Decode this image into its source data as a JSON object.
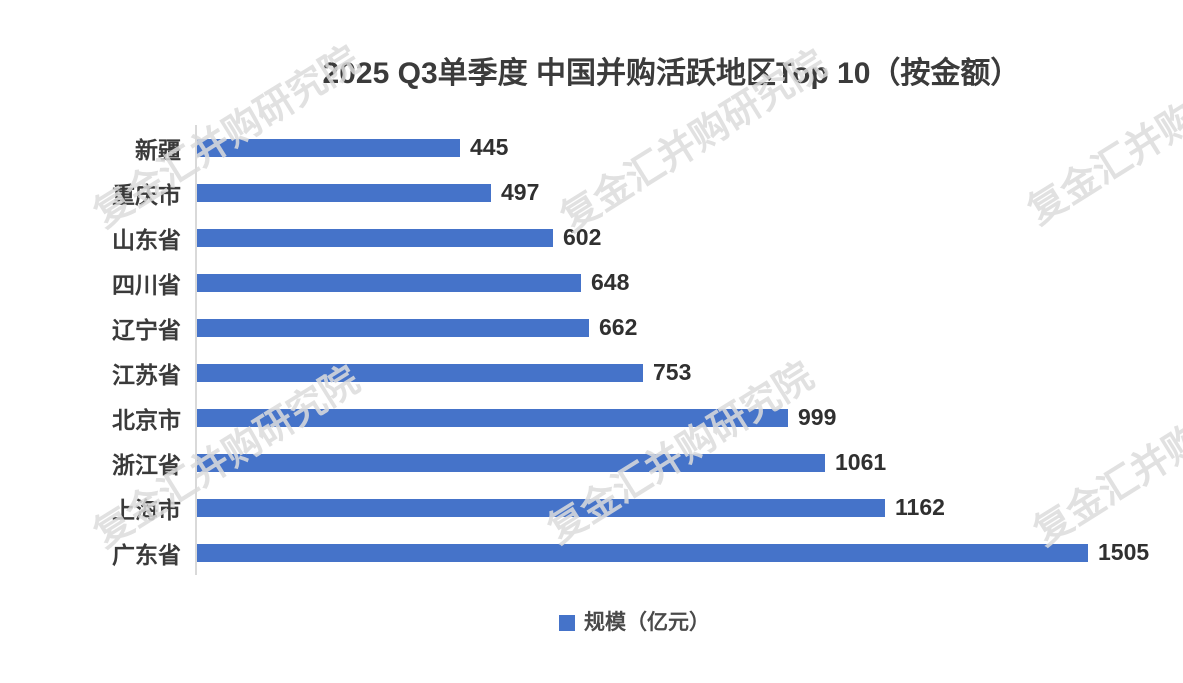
{
  "chart": {
    "title": "2025 Q3单季度  中国并购活跃地区Top 10（按金额）"
  },
  "chart_data": {
    "type": "bar",
    "orientation": "horizontal",
    "title": "2025 Q3单季度  中国并购活跃地区Top 10（按金额）",
    "categories": [
      "新疆",
      "重庆市",
      "山东省",
      "四川省",
      "辽宁省",
      "江苏省",
      "北京市",
      "浙江省",
      "上海市",
      "广东省"
    ],
    "values": [
      445,
      497,
      602,
      648,
      662,
      753,
      999,
      1061,
      1162,
      1505
    ],
    "category_order": "top-to-bottom as listed, ascending values",
    "series_name": "规模（亿元）",
    "data_labels": true,
    "grid": false,
    "x_axis_ticks_visible": false,
    "legend_position": "bottom-center",
    "bar_color": "#4573c9",
    "title_color": "#3b3b3b",
    "label_color": "#3a3a3a"
  },
  "legend": {
    "label": "规模（亿元）",
    "swatch_color": "#4573c9"
  },
  "watermark": {
    "text": "复金汇并购研究院"
  }
}
